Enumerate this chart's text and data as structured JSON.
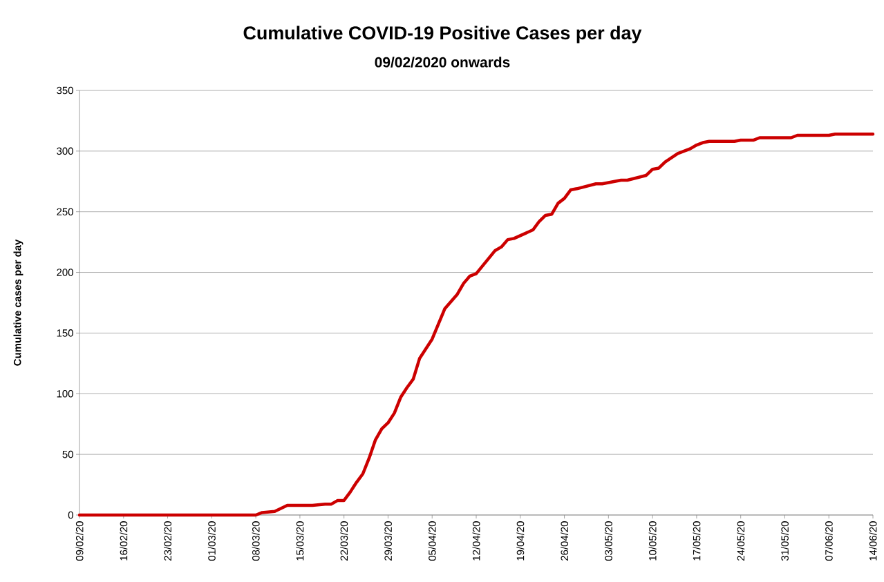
{
  "chart_data": {
    "type": "line",
    "title": "Cumulative COVID-19 Positive Cases per day",
    "subtitle": "09/02/2020 onwards",
    "ylabel": "Cumulative cases per day",
    "x": [
      "2020-02-09",
      "2020-03-08",
      "2020-03-09",
      "2020-03-11",
      "2020-03-13",
      "2020-03-17",
      "2020-03-19",
      "2020-03-20",
      "2020-03-21",
      "2020-03-22",
      "2020-03-23",
      "2020-03-24",
      "2020-03-25",
      "2020-03-26",
      "2020-03-27",
      "2020-03-28",
      "2020-03-29",
      "2020-03-30",
      "2020-03-31",
      "2020-04-01",
      "2020-04-02",
      "2020-04-03",
      "2020-04-04",
      "2020-04-05",
      "2020-04-07",
      "2020-04-09",
      "2020-04-10",
      "2020-04-11",
      "2020-04-12",
      "2020-04-15",
      "2020-04-16",
      "2020-04-17",
      "2020-04-18",
      "2020-04-21",
      "2020-04-22",
      "2020-04-23",
      "2020-04-24",
      "2020-04-25",
      "2020-04-26",
      "2020-04-27",
      "2020-04-28",
      "2020-05-01",
      "2020-05-02",
      "2020-05-04",
      "2020-05-05",
      "2020-05-06",
      "2020-05-09",
      "2020-05-10",
      "2020-05-11",
      "2020-05-12",
      "2020-05-14",
      "2020-05-16",
      "2020-05-17",
      "2020-05-18",
      "2020-05-19",
      "2020-05-23",
      "2020-05-24",
      "2020-05-26",
      "2020-05-27",
      "2020-06-01",
      "2020-06-02",
      "2020-06-07",
      "2020-06-08",
      "2020-06-14"
    ],
    "series": [
      {
        "color": "#cc0000",
        "values": [
          0,
          0,
          2,
          3,
          8,
          8,
          9,
          9,
          12,
          12,
          19,
          27,
          34,
          47,
          62,
          71,
          76,
          84,
          97,
          105,
          112,
          129,
          137,
          145,
          170,
          182,
          191,
          197,
          199,
          218,
          221,
          227,
          228,
          235,
          242,
          247,
          248,
          257,
          261,
          268,
          269,
          273,
          273,
          275,
          276,
          276,
          280,
          285,
          286,
          291,
          298,
          302,
          305,
          307,
          308,
          308,
          309,
          309,
          311,
          311,
          313,
          313,
          314,
          314
        ]
      }
    ],
    "xlim": [
      "2020-02-09",
      "2020-06-14"
    ],
    "xticks": [
      {
        "value": "2020-02-09",
        "label": "09/02/20"
      },
      {
        "value": "2020-02-16",
        "label": "16/02/20"
      },
      {
        "value": "2020-02-23",
        "label": "23/02/20"
      },
      {
        "value": "2020-03-01",
        "label": "01/03/20"
      },
      {
        "value": "2020-03-08",
        "label": "08/03/20"
      },
      {
        "value": "2020-03-15",
        "label": "15/03/20"
      },
      {
        "value": "2020-03-22",
        "label": "22/03/20"
      },
      {
        "value": "2020-03-29",
        "label": "29/03/20"
      },
      {
        "value": "2020-04-05",
        "label": "05/04/20"
      },
      {
        "value": "2020-04-12",
        "label": "12/04/20"
      },
      {
        "value": "2020-04-19",
        "label": "19/04/20"
      },
      {
        "value": "2020-04-26",
        "label": "26/04/20"
      },
      {
        "value": "2020-05-03",
        "label": "03/05/20"
      },
      {
        "value": "2020-05-10",
        "label": "10/05/20"
      },
      {
        "value": "2020-05-17",
        "label": "17/05/20"
      },
      {
        "value": "2020-05-24",
        "label": "24/05/20"
      },
      {
        "value": "2020-05-31",
        "label": "31/05/20"
      },
      {
        "value": "2020-06-07",
        "label": "07/06/20"
      },
      {
        "value": "2020-06-14",
        "label": "14/06/20"
      }
    ],
    "ylim": [
      0,
      350
    ],
    "yticks": [
      0,
      50,
      100,
      150,
      200,
      250,
      300,
      350
    ],
    "grid": "y"
  }
}
